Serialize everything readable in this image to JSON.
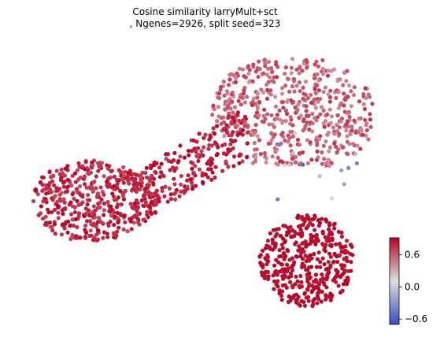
{
  "chart_data": {
    "type": "scatter",
    "title_line1": "Cosine similarity larryMult+sct",
    "title_line2": ", Ngenes=2926, split seed=323",
    "xlabel": "",
    "ylabel": "",
    "colormap": "coolwarm",
    "colorbar": {
      "range": [
        -0.7,
        0.92
      ],
      "ticks": [
        -0.6,
        0.0,
        0.6
      ],
      "tick_labels": [
        "−0.6",
        "0.0",
        "0.6"
      ]
    },
    "colors": {
      "low": "#3b4cc0",
      "mid": "#dddddd",
      "high": "#b40426"
    },
    "grid": false,
    "legend": "none",
    "x_range": [
      0,
      1
    ],
    "y_range": [
      0,
      1
    ],
    "clusters": [
      {
        "region": "upper-right arc",
        "x": [
          0.52,
          0.96
        ],
        "y": [
          0.55,
          0.95
        ],
        "value_range": [
          0.4,
          0.75
        ],
        "count": 520
      },
      {
        "region": "left lobe",
        "x": [
          0.03,
          0.36
        ],
        "y": [
          0.25,
          0.58
        ],
        "value_range": [
          0.65,
          0.92
        ],
        "count": 430
      },
      {
        "region": "central bridge",
        "x": [
          0.3,
          0.62
        ],
        "y": [
          0.35,
          0.75
        ],
        "value_range": [
          0.7,
          0.92
        ],
        "count": 260
      },
      {
        "region": "bottom cluster",
        "x": [
          0.64,
          0.92
        ],
        "y": [
          0.02,
          0.38
        ],
        "value_range": [
          0.85,
          0.92
        ],
        "count": 420
      },
      {
        "region": "upper-right outliers",
        "x": [
          0.68,
          0.92
        ],
        "y": [
          0.4,
          0.68
        ],
        "value_range": [
          -0.6,
          0.2
        ],
        "count": 14
      }
    ]
  }
}
